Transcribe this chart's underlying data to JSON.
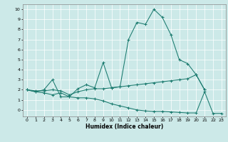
{
  "xlabel": "Humidex (Indice chaleur)",
  "bg_color": "#cce9e8",
  "line_color": "#1a7a6e",
  "grid_color": "#ffffff",
  "line1_x": [
    0,
    1,
    2,
    3,
    4,
    5,
    6,
    7,
    8,
    9,
    10,
    11,
    12,
    13,
    14,
    15,
    16,
    17,
    18,
    19,
    20,
    21
  ],
  "line1_y": [
    2.0,
    1.8,
    2.0,
    3.0,
    1.3,
    1.3,
    2.1,
    2.5,
    2.2,
    4.7,
    2.2,
    2.3,
    7.0,
    8.7,
    8.5,
    10.0,
    9.2,
    7.5,
    5.0,
    4.6,
    3.5,
    2.0
  ],
  "line2_x": [
    0,
    1,
    2,
    3,
    4,
    5,
    6,
    7,
    8,
    9,
    10,
    11,
    12,
    13,
    14,
    15,
    16,
    17,
    18,
    19,
    20,
    21
  ],
  "line2_y": [
    2.0,
    1.9,
    1.9,
    2.0,
    1.9,
    1.5,
    1.8,
    2.0,
    2.1,
    2.1,
    2.2,
    2.3,
    2.4,
    2.5,
    2.6,
    2.7,
    2.8,
    2.9,
    3.0,
    3.1,
    3.5,
    2.0
  ],
  "line3_x": [
    0,
    1,
    2,
    3,
    4,
    5,
    6,
    7,
    8,
    9,
    10,
    11,
    12,
    13,
    14,
    15,
    16,
    17,
    18,
    19,
    20,
    21,
    22,
    23
  ],
  "line3_y": [
    2.0,
    1.8,
    1.7,
    1.5,
    1.7,
    1.3,
    1.2,
    1.2,
    1.1,
    0.9,
    0.6,
    0.4,
    0.2,
    0.0,
    -0.1,
    -0.15,
    -0.15,
    -0.2,
    -0.25,
    -0.3,
    -0.3,
    1.8,
    -0.35,
    -0.35
  ],
  "xlim": [
    -0.5,
    23.5
  ],
  "ylim": [
    -0.65,
    10.5
  ],
  "xticks": [
    0,
    1,
    2,
    3,
    4,
    5,
    6,
    7,
    8,
    9,
    10,
    11,
    12,
    13,
    14,
    15,
    16,
    17,
    18,
    19,
    20,
    21,
    22,
    23
  ],
  "yticks": [
    0,
    1,
    2,
    3,
    4,
    5,
    6,
    7,
    8,
    9,
    10
  ]
}
